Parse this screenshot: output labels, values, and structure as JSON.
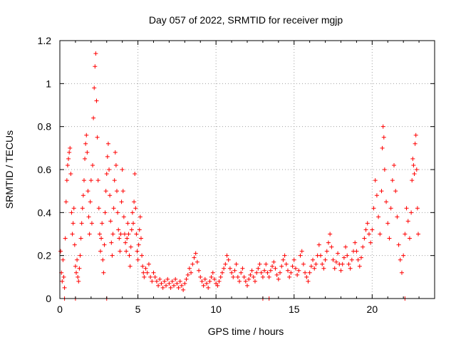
{
  "chart_data": {
    "type": "scatter",
    "title": "Day 057 of 2022, SRMTID for receiver mgjp",
    "xlabel": "GPS time / hours",
    "ylabel": "SRMTID / TECUs",
    "xlim": [
      0,
      24
    ],
    "ylim": [
      0,
      1.2
    ],
    "x_ticks": [
      0,
      5,
      10,
      15,
      20
    ],
    "y_ticks": [
      0,
      0.2,
      0.4,
      0.6,
      0.8,
      1,
      1.2
    ],
    "x_tick_labels": [
      "0",
      "5",
      "10",
      "15",
      "20"
    ],
    "y_tick_labels": [
      "0",
      "0.2",
      "0.4",
      "0.6",
      "0.8",
      "1",
      "1.2"
    ],
    "grid": true,
    "marker": "plus",
    "color": "#ff0000",
    "series": [
      {
        "name": "SRMTID",
        "points": [
          [
            0.05,
            0.22
          ],
          [
            0.1,
            0.12
          ],
          [
            0.15,
            0.08
          ],
          [
            0.2,
            0.18
          ],
          [
            0.25,
            0.1
          ],
          [
            0.3,
            0.05
          ],
          [
            0.35,
            0.28
          ],
          [
            0.4,
            0.45
          ],
          [
            0.45,
            0.55
          ],
          [
            0.5,
            0.62
          ],
          [
            0.55,
            0.65
          ],
          [
            0.6,
            0.68
          ],
          [
            0.65,
            0.7
          ],
          [
            0.7,
            0.58
          ],
          [
            0.75,
            0.4
          ],
          [
            0.8,
            0.3
          ],
          [
            0.85,
            0.35
          ],
          [
            0.9,
            0.42
          ],
          [
            0.95,
            0.25
          ],
          [
            1.0,
            0.15
          ],
          [
            1.05,
            0.12
          ],
          [
            1.1,
            0.18
          ],
          [
            1.15,
            0.1
          ],
          [
            1.2,
            0.08
          ],
          [
            1.25,
            0.14
          ],
          [
            1.3,
            0.2
          ],
          [
            1.35,
            0.28
          ],
          [
            1.4,
            0.35
          ],
          [
            1.45,
            0.42
          ],
          [
            1.5,
            0.48
          ],
          [
            1.55,
            0.55
          ],
          [
            1.6,
            0.65
          ],
          [
            1.65,
            0.72
          ],
          [
            1.7,
            0.76
          ],
          [
            1.75,
            0.68
          ],
          [
            1.8,
            0.5
          ],
          [
            1.85,
            0.38
          ],
          [
            1.9,
            0.3
          ],
          [
            1.95,
            0.45
          ],
          [
            2.0,
            0.55
          ],
          [
            2.05,
            0.35
          ],
          [
            2.1,
            0.62
          ],
          [
            2.15,
            0.84
          ],
          [
            2.2,
            0.98
          ],
          [
            2.25,
            1.08
          ],
          [
            2.3,
            1.14
          ],
          [
            2.35,
            0.92
          ],
          [
            2.4,
            0.75
          ],
          [
            2.45,
            0.55
          ],
          [
            2.5,
            0.42
          ],
          [
            2.55,
            0.3
          ],
          [
            2.6,
            0.22
          ],
          [
            2.65,
            0.28
          ],
          [
            2.7,
            0.35
          ],
          [
            2.75,
            0.18
          ],
          [
            2.8,
            0.12
          ],
          [
            2.85,
            0.25
          ],
          [
            2.9,
            0.4
          ],
          [
            2.95,
            0.5
          ],
          [
            3.0,
            0.58
          ],
          [
            3.05,
            0.66
          ],
          [
            3.1,
            0.72
          ],
          [
            3.15,
            0.6
          ],
          [
            3.2,
            0.48
          ],
          [
            3.25,
            0.36
          ],
          [
            3.3,
            0.26
          ],
          [
            3.35,
            0.2
          ],
          [
            3.4,
            0.3
          ],
          [
            3.45,
            0.42
          ],
          [
            3.5,
            0.55
          ],
          [
            3.55,
            0.68
          ],
          [
            3.6,
            0.62
          ],
          [
            3.65,
            0.5
          ],
          [
            3.7,
            0.4
          ],
          [
            3.75,
            0.32
          ],
          [
            3.8,
            0.28
          ],
          [
            3.85,
            0.22
          ],
          [
            3.9,
            0.3
          ],
          [
            3.95,
            0.45
          ],
          [
            4.0,
            0.6
          ],
          [
            4.05,
            0.5
          ],
          [
            4.1,
            0.38
          ],
          [
            4.15,
            0.3
          ],
          [
            4.2,
            0.26
          ],
          [
            4.25,
            0.22
          ],
          [
            4.3,
            0.28
          ],
          [
            4.35,
            0.35
          ],
          [
            4.4,
            0.3
          ],
          [
            4.45,
            0.2
          ],
          [
            4.5,
            0.15
          ],
          [
            4.55,
            0.24
          ],
          [
            4.6,
            0.32
          ],
          [
            4.65,
            0.4
          ],
          [
            4.7,
            0.35
          ],
          [
            4.75,
            0.45
          ],
          [
            4.8,
            0.58
          ],
          [
            4.85,
            0.42
          ],
          [
            4.9,
            0.3
          ],
          [
            4.95,
            0.22
          ],
          [
            5.0,
            0.18
          ],
          [
            5.05,
            0.25
          ],
          [
            5.1,
            0.32
          ],
          [
            5.15,
            0.38
          ],
          [
            5.2,
            0.28
          ],
          [
            5.25,
            0.2
          ],
          [
            5.3,
            0.15
          ],
          [
            5.35,
            0.12
          ],
          [
            5.4,
            0.1
          ],
          [
            5.5,
            0.14
          ],
          [
            5.6,
            0.12
          ],
          [
            5.7,
            0.16
          ],
          [
            5.8,
            0.1
          ],
          [
            5.9,
            0.08
          ],
          [
            6.0,
            0.12
          ],
          [
            6.1,
            0.1
          ],
          [
            6.2,
            0.08
          ],
          [
            6.3,
            0.06
          ],
          [
            6.4,
            0.09
          ],
          [
            6.5,
            0.07
          ],
          [
            6.6,
            0.05
          ],
          [
            6.7,
            0.08
          ],
          [
            6.8,
            0.06
          ],
          [
            6.9,
            0.09
          ],
          [
            7.0,
            0.07
          ],
          [
            7.1,
            0.05
          ],
          [
            7.2,
            0.08
          ],
          [
            7.3,
            0.06
          ],
          [
            7.4,
            0.09
          ],
          [
            7.5,
            0.07
          ],
          [
            7.6,
            0.05
          ],
          [
            7.7,
            0.08
          ],
          [
            7.8,
            0.06
          ],
          [
            7.9,
            0.04
          ],
          [
            8.0,
            0.07
          ],
          [
            8.1,
            0.09
          ],
          [
            8.2,
            0.11
          ],
          [
            8.3,
            0.14
          ],
          [
            8.4,
            0.12
          ],
          [
            8.5,
            0.16
          ],
          [
            8.6,
            0.19
          ],
          [
            8.7,
            0.21
          ],
          [
            8.8,
            0.17
          ],
          [
            8.9,
            0.13
          ],
          [
            9.0,
            0.1
          ],
          [
            9.1,
            0.08
          ],
          [
            9.2,
            0.06
          ],
          [
            9.3,
            0.09
          ],
          [
            9.4,
            0.07
          ],
          [
            9.5,
            0.05
          ],
          [
            9.6,
            0.08
          ],
          [
            9.7,
            0.1
          ],
          [
            9.8,
            0.12
          ],
          [
            9.9,
            0.09
          ],
          [
            10.0,
            0.07
          ],
          [
            10.1,
            0.06
          ],
          [
            10.2,
            0.08
          ],
          [
            10.3,
            0.1
          ],
          [
            10.4,
            0.12
          ],
          [
            10.5,
            0.14
          ],
          [
            10.6,
            0.16
          ],
          [
            10.7,
            0.2
          ],
          [
            10.8,
            0.18
          ],
          [
            10.9,
            0.14
          ],
          [
            11.0,
            0.12
          ],
          [
            11.1,
            0.1
          ],
          [
            11.2,
            0.13
          ],
          [
            11.3,
            0.16
          ],
          [
            11.4,
            0.1
          ],
          [
            11.5,
            0.08
          ],
          [
            11.6,
            0.12
          ],
          [
            11.7,
            0.14
          ],
          [
            11.8,
            0.1
          ],
          [
            11.9,
            0.08
          ],
          [
            12.0,
            0.06
          ],
          [
            12.1,
            0.09
          ],
          [
            12.2,
            0.11
          ],
          [
            12.3,
            0.13
          ],
          [
            12.4,
            0.1
          ],
          [
            12.5,
            0.08
          ],
          [
            12.6,
            0.12
          ],
          [
            12.7,
            0.14
          ],
          [
            12.8,
            0.16
          ],
          [
            12.9,
            0.12
          ],
          [
            13.0,
            0.1
          ],
          [
            13.1,
            0.13
          ],
          [
            13.2,
            0.16
          ],
          [
            13.3,
            0.12
          ],
          [
            13.4,
            0.1
          ],
          [
            13.5,
            0.13
          ],
          [
            13.6,
            0.15
          ],
          [
            13.7,
            0.17
          ],
          [
            13.8,
            0.14
          ],
          [
            13.9,
            0.11
          ],
          [
            14.0,
            0.09
          ],
          [
            14.1,
            0.12
          ],
          [
            14.2,
            0.15
          ],
          [
            14.3,
            0.18
          ],
          [
            14.4,
            0.2
          ],
          [
            14.5,
            0.16
          ],
          [
            14.6,
            0.13
          ],
          [
            14.7,
            0.1
          ],
          [
            14.8,
            0.12
          ],
          [
            14.9,
            0.15
          ],
          [
            15.0,
            0.18
          ],
          [
            15.1,
            0.14
          ],
          [
            15.2,
            0.11
          ],
          [
            15.3,
            0.13
          ],
          [
            15.4,
            0.2
          ],
          [
            15.5,
            0.22
          ],
          [
            15.6,
            0.16
          ],
          [
            15.7,
            0.12
          ],
          [
            15.8,
            0.1
          ],
          [
            15.9,
            0.08
          ],
          [
            16.0,
            0.12
          ],
          [
            16.1,
            0.15
          ],
          [
            16.2,
            0.18
          ],
          [
            16.3,
            0.14
          ],
          [
            16.4,
            0.16
          ],
          [
            16.5,
            0.2
          ],
          [
            16.6,
            0.25
          ],
          [
            16.7,
            0.2
          ],
          [
            16.8,
            0.16
          ],
          [
            16.9,
            0.14
          ],
          [
            17.0,
            0.18
          ],
          [
            17.1,
            0.22
          ],
          [
            17.2,
            0.26
          ],
          [
            17.3,
            0.3
          ],
          [
            17.4,
            0.24
          ],
          [
            17.5,
            0.18
          ],
          [
            17.6,
            0.14
          ],
          [
            17.7,
            0.17
          ],
          [
            17.8,
            0.21
          ],
          [
            17.9,
            0.16
          ],
          [
            18.0,
            0.13
          ],
          [
            18.1,
            0.16
          ],
          [
            18.2,
            0.19
          ],
          [
            18.3,
            0.24
          ],
          [
            18.4,
            0.2
          ],
          [
            18.5,
            0.16
          ],
          [
            18.6,
            0.14
          ],
          [
            18.7,
            0.18
          ],
          [
            18.8,
            0.22
          ],
          [
            18.9,
            0.26
          ],
          [
            19.0,
            0.22
          ],
          [
            19.1,
            0.18
          ],
          [
            19.2,
            0.15
          ],
          [
            19.3,
            0.19
          ],
          [
            19.4,
            0.24
          ],
          [
            19.5,
            0.28
          ],
          [
            19.6,
            0.32
          ],
          [
            19.7,
            0.35
          ],
          [
            19.8,
            0.3
          ],
          [
            19.9,
            0.26
          ],
          [
            20.0,
            0.32
          ],
          [
            20.1,
            0.42
          ],
          [
            20.2,
            0.55
          ],
          [
            20.3,
            0.48
          ],
          [
            20.4,
            0.38
          ],
          [
            20.5,
            0.3
          ],
          [
            20.6,
            0.5
          ],
          [
            20.65,
            0.7
          ],
          [
            20.7,
            0.8
          ],
          [
            20.75,
            0.75
          ],
          [
            20.8,
            0.6
          ],
          [
            20.9,
            0.45
          ],
          [
            21.0,
            0.35
          ],
          [
            21.1,
            0.28
          ],
          [
            21.2,
            0.42
          ],
          [
            21.3,
            0.55
          ],
          [
            21.4,
            0.62
          ],
          [
            21.5,
            0.5
          ],
          [
            21.6,
            0.38
          ],
          [
            21.7,
            0.25
          ],
          [
            21.8,
            0.18
          ],
          [
            21.9,
            0.12
          ],
          [
            22.0,
            0.2
          ],
          [
            22.1,
            0.3
          ],
          [
            22.2,
            0.42
          ],
          [
            22.3,
            0.36
          ],
          [
            22.4,
            0.28
          ],
          [
            22.5,
            0.4
          ],
          [
            22.55,
            0.55
          ],
          [
            22.6,
            0.65
          ],
          [
            22.65,
            0.62
          ],
          [
            22.7,
            0.58
          ],
          [
            22.75,
            0.72
          ],
          [
            22.8,
            0.76
          ],
          [
            22.85,
            0.6
          ],
          [
            22.9,
            0.42
          ],
          [
            22.95,
            0.3
          ],
          [
            0.3,
            0.0
          ],
          [
            1.0,
            0.0
          ],
          [
            3.0,
            0.0
          ],
          [
            13.0,
            0.0
          ],
          [
            13.4,
            0.0
          ],
          [
            22.1,
            0.0
          ]
        ]
      }
    ]
  }
}
